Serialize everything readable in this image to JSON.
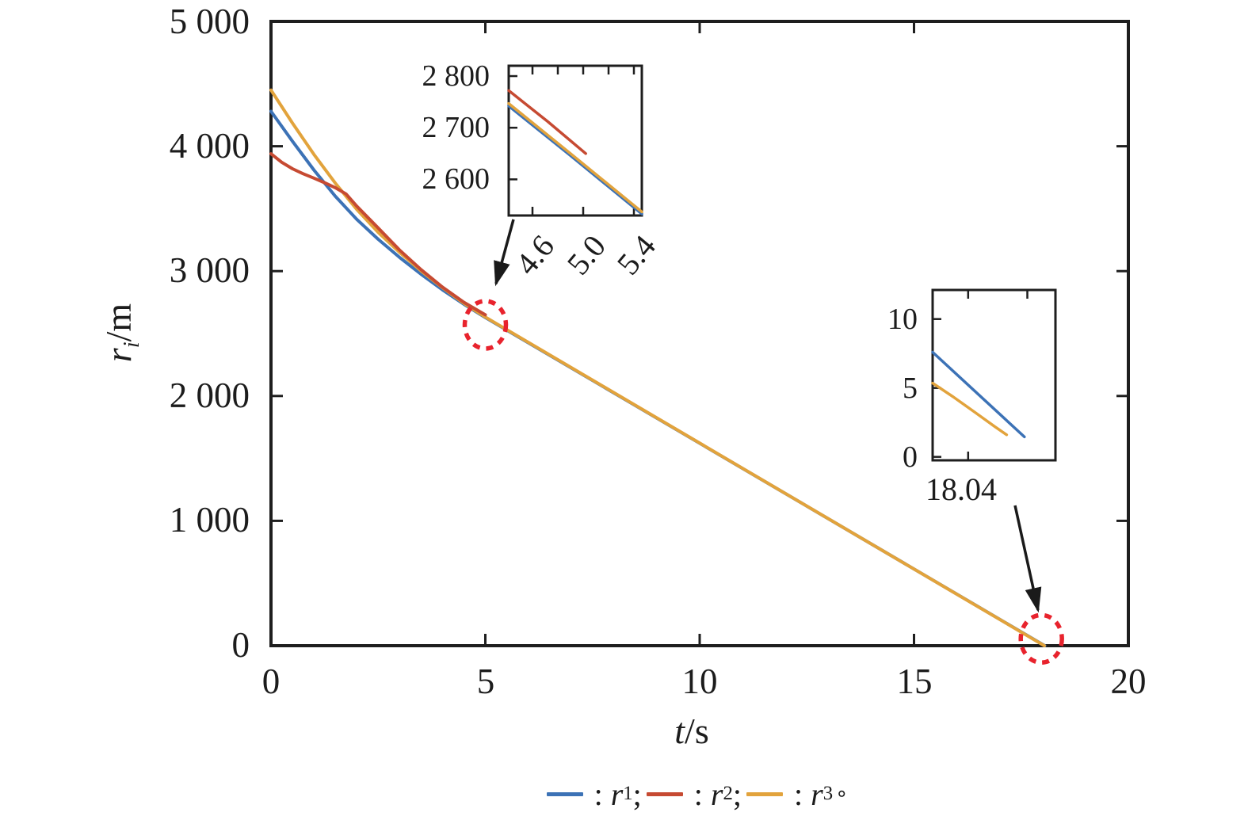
{
  "axes": {
    "x": {
      "sym": "t",
      "unit": "/s",
      "ticks": [
        "0",
        "5",
        "10",
        "15",
        "20"
      ]
    },
    "y": {
      "sym": "r",
      "sub": "i",
      "unit": "/m",
      "ticks": [
        "0",
        "1 000",
        "2 000",
        "3 000",
        "4 000",
        "5 000"
      ]
    }
  },
  "inset1": {
    "yticks": [
      "2 800",
      "2 700",
      "2 600"
    ],
    "xticks": [
      "4.6",
      "5.0",
      "5.4"
    ]
  },
  "inset2": {
    "yticks": [
      "10",
      "5",
      "0"
    ],
    "xtick": "18.04"
  },
  "legend": {
    "items": [
      {
        "pre": ":",
        "sym": "r",
        "sub": "1",
        "post": ";"
      },
      {
        "pre": ":",
        "sym": "r",
        "sub": "2",
        "post": ";"
      },
      {
        "pre": ":",
        "sym": "r",
        "sub": "3",
        "post": "∘"
      }
    ]
  },
  "chart_data": {
    "type": "line",
    "title": "",
    "xlabel": "t/s",
    "ylabel": "ri/m",
    "xlim": [
      0,
      20
    ],
    "ylim": [
      0,
      5000
    ],
    "xticks": [
      0,
      5,
      10,
      15,
      20
    ],
    "yticks": [
      0,
      1000,
      2000,
      3000,
      4000,
      5000
    ],
    "grid": false,
    "legend_position": "bottom",
    "colors": {
      "axis": "#1e1e1e",
      "highlight": "#e8232d"
    },
    "series": [
      {
        "name": "r1",
        "color": "#3c72b6",
        "points": [
          [
            0,
            4280
          ],
          [
            0.5,
            4040
          ],
          [
            1,
            3810
          ],
          [
            1.5,
            3600
          ],
          [
            2,
            3415
          ],
          [
            2.5,
            3255
          ],
          [
            3,
            3110
          ],
          [
            3.5,
            2975
          ],
          [
            4,
            2850
          ],
          [
            4.5,
            2735
          ],
          [
            5,
            2628
          ],
          [
            18.05,
            0
          ]
        ]
      },
      {
        "name": "r3",
        "color": "#e2a33c",
        "points": [
          [
            0,
            4450
          ],
          [
            0.5,
            4185
          ],
          [
            1,
            3935
          ],
          [
            1.5,
            3705
          ],
          [
            2,
            3495
          ],
          [
            2.5,
            3310
          ],
          [
            3,
            3150
          ],
          [
            3.5,
            3002
          ],
          [
            4,
            2868
          ],
          [
            4.5,
            2742
          ],
          [
            5,
            2632
          ],
          [
            18.04,
            0
          ]
        ]
      },
      {
        "name": "r2",
        "color": "#c64a32",
        "points": [
          [
            0,
            3940
          ],
          [
            0.25,
            3872
          ],
          [
            0.5,
            3820
          ],
          [
            0.75,
            3780
          ],
          [
            1,
            3745
          ],
          [
            1.25,
            3708
          ],
          [
            1.5,
            3668
          ],
          [
            1.75,
            3618
          ],
          [
            2,
            3520
          ],
          [
            2.5,
            3345
          ],
          [
            3,
            3168
          ],
          [
            3.5,
            3012
          ],
          [
            4,
            2872
          ],
          [
            4.5,
            2750
          ],
          [
            5,
            2650
          ]
        ]
      }
    ],
    "insets": [
      {
        "xlim": [
          4.4125,
          5.4625
        ],
        "ylim": [
          2530,
          2820
        ],
        "xticks": [
          4.6,
          5.0,
          5.4
        ],
        "xticks_top": [
          4.6,
          4.8,
          5.0,
          5.2,
          5.4
        ],
        "yticks": [
          2600,
          2700,
          2800
        ],
        "series": [
          {
            "name": "r1",
            "points": [
              [
                4.4125,
                2742
              ],
              [
                4.9,
                2646
              ],
              [
                5.4625,
                2533
              ]
            ]
          },
          {
            "name": "r3",
            "points": [
              [
                4.4125,
                2747
              ],
              [
                4.9,
                2650
              ],
              [
                5.4625,
                2537
              ]
            ]
          },
          {
            "name": "r2",
            "points": [
              [
                4.4125,
                2772
              ],
              [
                4.72,
                2712
              ],
              [
                5.02,
                2650
              ]
            ]
          }
        ]
      },
      {
        "xlim": [
          18.016,
          18.099
        ],
        "ylim": [
          -0.25,
          12.11
        ],
        "xticks": [
          18.04
        ],
        "xticks_top": [
          18.04,
          18.08
        ],
        "yticks": [
          0,
          5,
          10
        ],
        "series": [
          {
            "name": "r1",
            "points": [
              [
                18.016,
                7.6
              ],
              [
                18.078,
                1.45
              ]
            ]
          },
          {
            "name": "r3",
            "points": [
              [
                18.016,
                5.35
              ],
              [
                18.03,
                4.35
              ],
              [
                18.045,
                3.2
              ],
              [
                18.058,
                2.2
              ],
              [
                18.066,
                1.6
              ]
            ]
          }
        ]
      }
    ],
    "annotations": [
      {
        "type": "zoom-circle",
        "t": 5.0,
        "r": 2570
      },
      {
        "type": "zoom-circle",
        "t": 17.97,
        "r": 55
      }
    ]
  }
}
